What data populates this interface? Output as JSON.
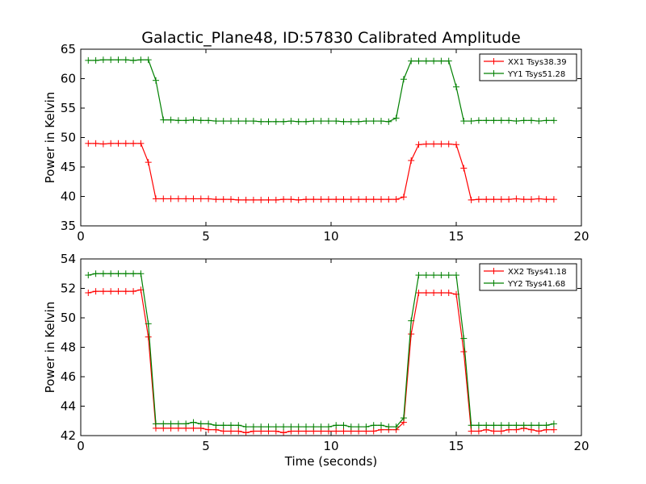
{
  "figure": {
    "title": "Galactic_Plane48, ID:57830 Calibrated Amplitude"
  },
  "chart_data": [
    {
      "type": "line",
      "title": "Galactic_Plane48, ID:57830 Calibrated Amplitude",
      "xlabel": "",
      "ylabel": "Power in Kelvin",
      "xlim": [
        0,
        20
      ],
      "ylim": [
        35,
        65
      ],
      "xticks": [
        "0",
        "5",
        "10",
        "15",
        "20"
      ],
      "yticks": [
        "35",
        "40",
        "45",
        "50",
        "55",
        "60",
        "65"
      ],
      "grid": false,
      "legend_position": "top-right",
      "x": [
        0.3,
        0.6,
        0.9,
        1.2,
        1.5,
        1.8,
        2.1,
        2.4,
        2.7,
        3.0,
        3.3,
        3.6,
        3.9,
        4.2,
        4.5,
        4.8,
        5.1,
        5.4,
        5.7,
        6.0,
        6.3,
        6.6,
        6.9,
        7.2,
        7.5,
        7.8,
        8.1,
        8.4,
        8.7,
        9.0,
        9.3,
        9.6,
        9.9,
        10.2,
        10.5,
        10.8,
        11.1,
        11.4,
        11.7,
        12.0,
        12.3,
        12.6,
        12.9,
        13.2,
        13.5,
        13.8,
        14.1,
        14.4,
        14.7,
        15.0,
        15.3,
        15.6,
        15.9,
        16.2,
        16.5,
        16.8,
        17.1,
        17.4,
        17.7,
        18.0,
        18.3,
        18.6,
        18.9
      ],
      "series": [
        {
          "name": "XX1 Tsys38.39",
          "color": "#ff0000",
          "values": [
            49.0,
            49.0,
            48.9,
            49.0,
            49.0,
            49.0,
            49.0,
            49.0,
            45.8,
            39.6,
            39.6,
            39.6,
            39.6,
            39.6,
            39.6,
            39.6,
            39.6,
            39.5,
            39.5,
            39.5,
            39.4,
            39.4,
            39.4,
            39.4,
            39.4,
            39.4,
            39.5,
            39.5,
            39.4,
            39.5,
            39.5,
            39.5,
            39.5,
            39.5,
            39.5,
            39.5,
            39.5,
            39.5,
            39.5,
            39.5,
            39.5,
            39.5,
            39.9,
            46.1,
            48.8,
            48.9,
            48.9,
            48.9,
            48.9,
            48.8,
            44.8,
            39.4,
            39.5,
            39.5,
            39.5,
            39.5,
            39.5,
            39.6,
            39.5,
            39.5,
            39.6,
            39.5,
            39.5
          ]
        },
        {
          "name": "YY1 Tsys51.28",
          "color": "#008000",
          "values": [
            63.1,
            63.1,
            63.2,
            63.2,
            63.2,
            63.2,
            63.1,
            63.2,
            63.2,
            59.7,
            53.0,
            53.0,
            52.9,
            52.9,
            53.0,
            52.9,
            52.9,
            52.8,
            52.8,
            52.8,
            52.8,
            52.8,
            52.8,
            52.7,
            52.7,
            52.7,
            52.7,
            52.8,
            52.7,
            52.7,
            52.8,
            52.8,
            52.8,
            52.8,
            52.7,
            52.7,
            52.7,
            52.8,
            52.8,
            52.8,
            52.7,
            53.3,
            59.9,
            63.0,
            63.0,
            63.0,
            63.0,
            63.0,
            63.0,
            58.6,
            52.8,
            52.8,
            52.9,
            52.9,
            52.9,
            52.9,
            52.9,
            52.8,
            52.9,
            52.9,
            52.8,
            52.9,
            52.9
          ]
        }
      ]
    },
    {
      "type": "line",
      "title": "",
      "xlabel": "Time (seconds)",
      "ylabel": "Power in Kelvin",
      "xlim": [
        0,
        20
      ],
      "ylim": [
        42,
        54
      ],
      "xticks": [
        "0",
        "5",
        "10",
        "15",
        "20"
      ],
      "yticks": [
        "42",
        "44",
        "46",
        "48",
        "50",
        "52",
        "54"
      ],
      "grid": false,
      "legend_position": "top-right",
      "x": [
        0.3,
        0.6,
        0.9,
        1.2,
        1.5,
        1.8,
        2.1,
        2.4,
        2.7,
        3.0,
        3.3,
        3.6,
        3.9,
        4.2,
        4.5,
        4.8,
        5.1,
        5.4,
        5.7,
        6.0,
        6.3,
        6.6,
        6.9,
        7.2,
        7.5,
        7.8,
        8.1,
        8.4,
        8.7,
        9.0,
        9.3,
        9.6,
        9.9,
        10.2,
        10.5,
        10.8,
        11.1,
        11.4,
        11.7,
        12.0,
        12.3,
        12.6,
        12.9,
        13.2,
        13.5,
        13.8,
        14.1,
        14.4,
        14.7,
        15.0,
        15.3,
        15.6,
        15.9,
        16.2,
        16.5,
        16.8,
        17.1,
        17.4,
        17.7,
        18.0,
        18.3,
        18.6,
        18.9
      ],
      "series": [
        {
          "name": "XX2 Tsys41.18",
          "color": "#ff0000",
          "values": [
            51.7,
            51.8,
            51.8,
            51.8,
            51.8,
            51.8,
            51.8,
            51.9,
            48.7,
            42.5,
            42.5,
            42.5,
            42.5,
            42.5,
            42.5,
            42.5,
            42.4,
            42.4,
            42.3,
            42.3,
            42.3,
            42.2,
            42.3,
            42.3,
            42.3,
            42.3,
            42.2,
            42.3,
            42.3,
            42.3,
            42.3,
            42.3,
            42.3,
            42.3,
            42.3,
            42.3,
            42.3,
            42.3,
            42.3,
            42.4,
            42.4,
            42.4,
            42.9,
            48.9,
            51.7,
            51.7,
            51.7,
            51.7,
            51.7,
            51.6,
            47.7,
            42.3,
            42.3,
            42.4,
            42.3,
            42.3,
            42.4,
            42.4,
            42.5,
            42.4,
            42.3,
            42.4,
            42.4
          ]
        },
        {
          "name": "YY2 Tsys41.68",
          "color": "#008000",
          "values": [
            52.9,
            53.0,
            53.0,
            53.0,
            53.0,
            53.0,
            53.0,
            53.0,
            49.6,
            42.8,
            42.8,
            42.8,
            42.8,
            42.8,
            42.9,
            42.8,
            42.8,
            42.7,
            42.7,
            42.7,
            42.7,
            42.6,
            42.6,
            42.6,
            42.6,
            42.6,
            42.6,
            42.6,
            42.6,
            42.6,
            42.6,
            42.6,
            42.6,
            42.7,
            42.7,
            42.6,
            42.6,
            42.6,
            42.7,
            42.7,
            42.6,
            42.6,
            43.2,
            49.8,
            52.9,
            52.9,
            52.9,
            52.9,
            52.9,
            52.9,
            48.6,
            42.7,
            42.7,
            42.7,
            42.7,
            42.7,
            42.7,
            42.7,
            42.7,
            42.7,
            42.7,
            42.7,
            42.8
          ]
        }
      ]
    }
  ]
}
